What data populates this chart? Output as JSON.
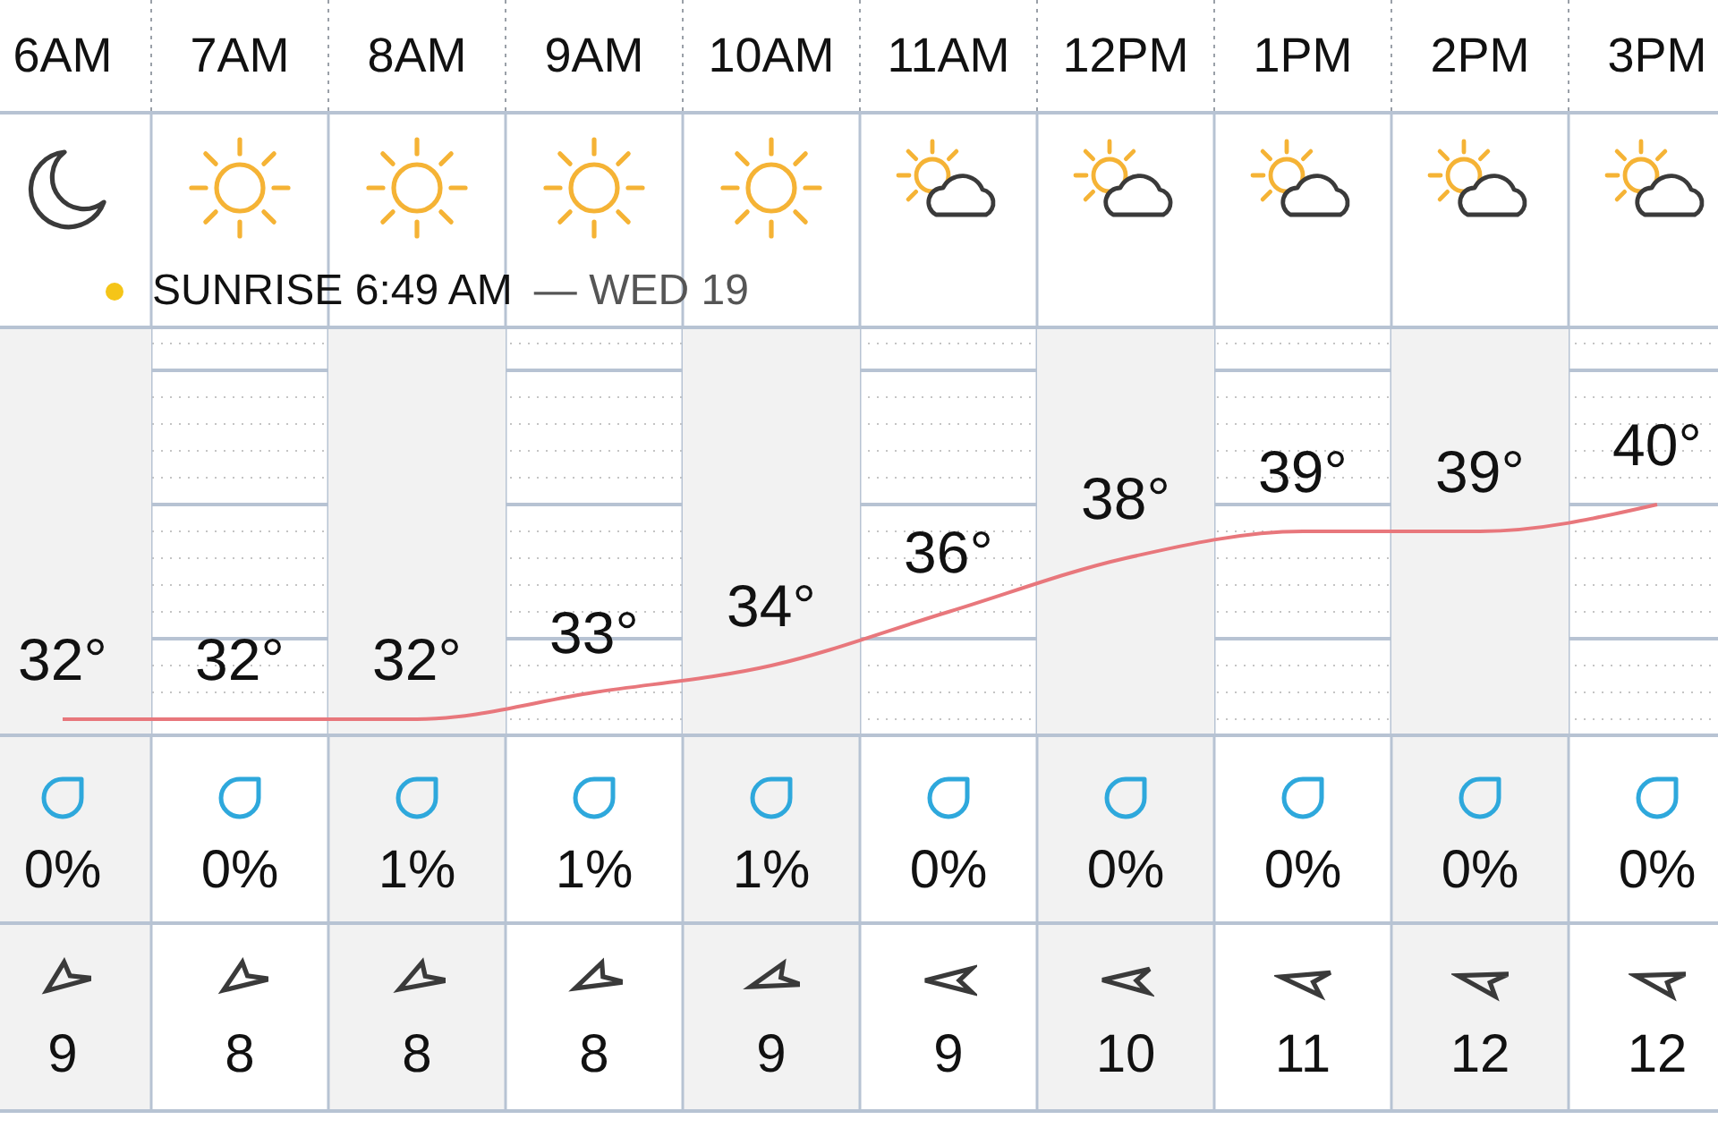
{
  "chart_data": [
    {
      "type": "line",
      "categories": [
        "6AM",
        "7AM",
        "8AM",
        "9AM",
        "10AM",
        "11AM",
        "12PM",
        "1PM",
        "2PM",
        "3PM"
      ],
      "values": [
        32,
        32,
        32,
        33,
        34,
        36,
        38,
        39,
        39,
        40
      ],
      "value_labels": [
        "32°",
        "32°",
        "32°",
        "33°",
        "34°",
        "36°",
        "38°",
        "39°",
        "39°",
        "40°"
      ],
      "color": "#e8777c",
      "ylim": [
        31.4,
        46.6
      ],
      "yticks": [
        {
          "value": 32,
          "label": null
        },
        {
          "value": 33,
          "label": null
        },
        {
          "value": 34,
          "label": null
        },
        {
          "value": 35,
          "label": null
        },
        {
          "value": 36,
          "label": null
        },
        {
          "value": 37,
          "label": null
        },
        {
          "value": 38,
          "label": null
        },
        {
          "value": 39,
          "label": null
        },
        {
          "value": 40,
          "label": null
        },
        {
          "value": 41,
          "label": null
        },
        {
          "value": 42,
          "label": null
        },
        {
          "value": 43,
          "label": null
        },
        {
          "value": 44,
          "label": null
        },
        {
          "value": 45,
          "label": null
        },
        {
          "value": 46,
          "label": null
        }
      ],
      "grid": true,
      "tick_labels": "x",
      "bands": [
        {
          "axis": "x",
          "from": "6AM",
          "to": "6AM",
          "color": "#f2f2f2"
        },
        {
          "axis": "x",
          "from": "8AM",
          "to": "8AM",
          "color": "#f2f2f2"
        },
        {
          "axis": "x",
          "from": "10AM",
          "to": "10AM",
          "color": "#f2f2f2"
        },
        {
          "axis": "x",
          "from": "12PM",
          "to": "12PM",
          "color": "#f2f2f2"
        },
        {
          "axis": "x",
          "from": "2PM",
          "to": "2PM",
          "color": "#f2f2f2"
        }
      ],
      "annotations": [
        "SUNRISE 6:49 AM",
        "— WED 19"
      ]
    },
    {
      "type": "other",
      "values": [
        0,
        0,
        1,
        1,
        1,
        0,
        0,
        0,
        0,
        0
      ],
      "value_labels": [
        "0%",
        "0%",
        "1%",
        "1%",
        "1%",
        "0%",
        "0%",
        "0%",
        "0%",
        "0%"
      ]
    },
    {
      "type": "other",
      "values": [
        9,
        8,
        8,
        8,
        9,
        9,
        10,
        11,
        12,
        12
      ],
      "data_labels": true
    }
  ]
}
